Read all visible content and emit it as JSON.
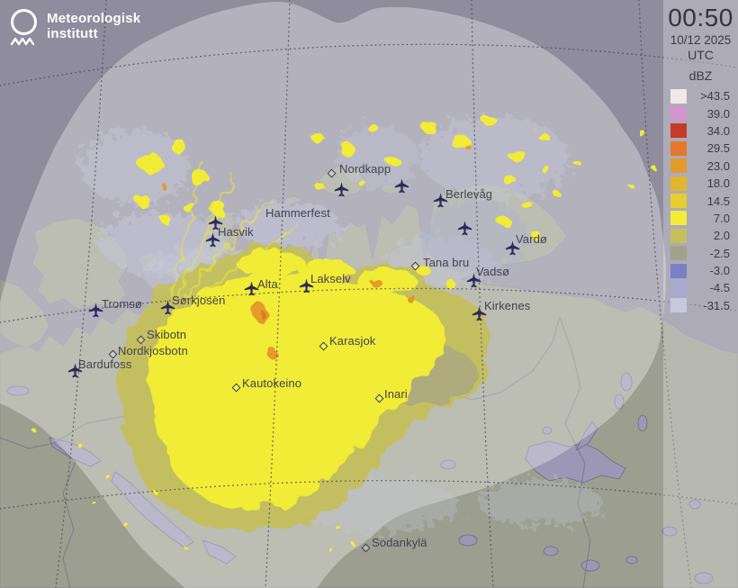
{
  "branding": {
    "line1": "Meteorologisk",
    "line2": "institutt"
  },
  "header": {
    "time": "00:50",
    "date": "10/12 2025",
    "timezone": "UTC"
  },
  "legend": {
    "unit": "dBZ",
    "entries": [
      {
        "label": ">43.5",
        "color": "#f2e8ea"
      },
      {
        "label": "39.0",
        "color": "#d494ce"
      },
      {
        "label": "34.0",
        "color": "#c63b27"
      },
      {
        "label": "29.5",
        "color": "#e4782b"
      },
      {
        "label": "23.0",
        "color": "#e29a2b"
      },
      {
        "label": "18.0",
        "color": "#dfb72c"
      },
      {
        "label": "14.5",
        "color": "#e9cd2e"
      },
      {
        "label": "7.0",
        "color": "#f2ed36"
      },
      {
        "label": "2.0",
        "color": "#c4c05c"
      },
      {
        "label": "-2.5",
        "color": "#a3a188"
      },
      {
        "label": "-3.0",
        "color": "#7b80c4"
      },
      {
        "label": "-4.5",
        "color": "#a7aace"
      },
      {
        "label": "-31.5",
        "color": "#c6c8de"
      }
    ]
  },
  "map": {
    "colors": {
      "sea_outside": "#8f8c9d",
      "land_outside": "#9c9e90",
      "coverage_overlay": "rgba(255,255,255,0.32)",
      "lake": "#9b97b4",
      "coastline": "#8a87a0",
      "border": "#716e7e",
      "graticule": "#4c4956",
      "echo_weak": "#c5c7dc",
      "echo_low": "#c4bf5b",
      "echo_yellow": "#f1ec35",
      "echo_orange": "#e59a2b",
      "echo_orange_deep": "#e2762b",
      "label_text": "#45424f",
      "airplane": "#2c2a58"
    },
    "places": [
      {
        "name": "Nordkapp",
        "type": "town",
        "marker": [
          369,
          193
        ],
        "label": [
          377,
          180
        ]
      },
      {
        "name": "Berlevåg",
        "type": "airport",
        "marker": [
          489,
          222
        ],
        "label": [
          495,
          208
        ]
      },
      {
        "name": "Hammerfest",
        "type": "airport",
        "marker": [
          239,
          247
        ],
        "label": [
          295,
          229
        ]
      },
      {
        "name": "Hasvik",
        "type": "airport",
        "marker": [
          236,
          266
        ],
        "label": [
          242,
          250
        ]
      },
      {
        "name": "Vardø",
        "type": "airport",
        "marker": [
          569,
          275
        ],
        "label": [
          573,
          258
        ]
      },
      {
        "name": "Tana bru",
        "type": "town",
        "marker": [
          462,
          296
        ],
        "label": [
          470,
          284
        ]
      },
      {
        "name": "Vadsø",
        "type": "airport",
        "marker": [
          526,
          311
        ],
        "label": [
          529,
          294
        ]
      },
      {
        "name": "Lakselv",
        "type": "airport",
        "marker": [
          340,
          317
        ],
        "label": [
          345,
          302
        ]
      },
      {
        "name": "Alta",
        "type": "airport",
        "marker": [
          279,
          320
        ],
        "label": [
          286,
          308
        ]
      },
      {
        "name": "Kirkenes",
        "type": "airport",
        "marker": [
          532,
          348
        ],
        "label": [
          538,
          332
        ]
      },
      {
        "name": "Tromsø",
        "type": "airport",
        "marker": [
          106,
          344
        ],
        "label": [
          113,
          330
        ]
      },
      {
        "name": "Sørkjosen",
        "type": "airport",
        "marker": [
          186,
          341
        ],
        "label": [
          191,
          326
        ]
      },
      {
        "name": "Skibotn",
        "type": "town",
        "marker": [
          157,
          378
        ],
        "label": [
          163,
          364
        ]
      },
      {
        "name": "Nordkjosbotn",
        "type": "town",
        "marker": [
          126,
          394
        ],
        "label": [
          131,
          382
        ]
      },
      {
        "name": "Bardufoss",
        "type": "airport",
        "marker": [
          83,
          411
        ],
        "label": [
          87,
          397
        ]
      },
      {
        "name": "Kautokeino",
        "type": "town",
        "marker": [
          263,
          431
        ],
        "label": [
          269,
          418
        ]
      },
      {
        "name": "Karasjok",
        "type": "town",
        "marker": [
          360,
          385
        ],
        "label": [
          366,
          371
        ]
      },
      {
        "name": "Inari",
        "type": "town",
        "marker": [
          422,
          443
        ],
        "label": [
          427,
          430
        ]
      },
      {
        "name": "Sodankylä",
        "type": "town",
        "marker": [
          407,
          609
        ],
        "label": [
          413,
          595
        ]
      },
      {
        "name": "",
        "type": "airport",
        "marker": [
          446,
          206
        ],
        "label": null
      },
      {
        "name": "",
        "type": "airport",
        "marker": [
          516,
          253
        ],
        "label": null
      },
      {
        "name": "",
        "type": "airport",
        "marker": [
          379,
          210
        ],
        "label": null
      }
    ]
  }
}
